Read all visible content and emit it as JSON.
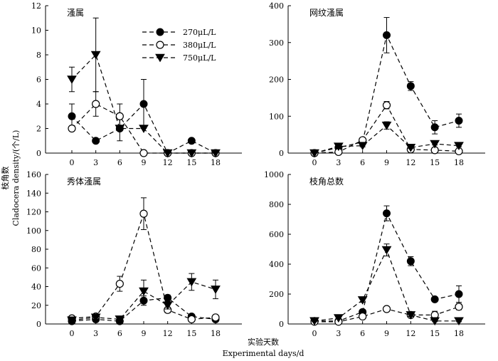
{
  "figure": {
    "ylabel_cn": "枝角数",
    "ylabel_en": "Cladocera density/(个/L)",
    "xlabel_cn": "实验天数",
    "xlabel_en": "Experimental days/d",
    "legend": [
      "270μL/L",
      "380μL/L",
      "750μL/L"
    ]
  },
  "chart_data": [
    {
      "type": "line",
      "title": "溞属",
      "x": [
        0,
        3,
        6,
        9,
        12,
        15,
        18
      ],
      "xticks": [
        "0",
        "3",
        "6",
        "9",
        "12",
        "15",
        "18"
      ],
      "ylim": [
        0,
        12
      ],
      "yticks": [
        0,
        2,
        4,
        6,
        8,
        10,
        12
      ],
      "show_legend": true,
      "series": [
        {
          "name": "270μL/L",
          "marker": "filled-circle",
          "values": [
            3,
            1,
            2,
            4,
            0,
            1,
            0
          ],
          "errors": [
            1,
            0,
            1,
            2,
            0,
            0,
            0
          ]
        },
        {
          "name": "380μL/L",
          "marker": "open-circle",
          "values": [
            2,
            4,
            3,
            0,
            0,
            0,
            0
          ],
          "errors": [
            0,
            1,
            1,
            0,
            0,
            0,
            0
          ]
        },
        {
          "name": "750μL/L",
          "marker": "triangle-down",
          "values": [
            6,
            8,
            2,
            2,
            0,
            0,
            0
          ],
          "errors": [
            1,
            3,
            0,
            0,
            0,
            0,
            0
          ]
        }
      ]
    },
    {
      "type": "line",
      "title": "网纹溞属",
      "x": [
        0,
        3,
        6,
        9,
        12,
        15,
        18
      ],
      "xticks": [
        "0",
        "3",
        "6",
        "9",
        "12",
        "15",
        "18"
      ],
      "ylim": [
        0,
        400
      ],
      "yticks": [
        0,
        100,
        200,
        300,
        400
      ],
      "show_legend": false,
      "series": [
        {
          "name": "270μL/L",
          "marker": "filled-circle",
          "values": [
            0,
            15,
            30,
            320,
            182,
            70,
            88
          ],
          "errors": [
            3,
            4,
            5,
            48,
            12,
            18,
            18
          ]
        },
        {
          "name": "380μL/L",
          "marker": "open-circle",
          "values": [
            0,
            3,
            35,
            130,
            10,
            8,
            5
          ],
          "errors": [
            2,
            2,
            5,
            10,
            3,
            3,
            2
          ]
        },
        {
          "name": "750μL/L",
          "marker": "triangle-down",
          "values": [
            0,
            18,
            20,
            75,
            15,
            25,
            20
          ],
          "errors": [
            2,
            3,
            3,
            10,
            3,
            3,
            3
          ]
        }
      ]
    },
    {
      "type": "line",
      "title": "秀体溞属",
      "x": [
        0,
        3,
        6,
        9,
        12,
        15,
        18
      ],
      "xticks": [
        "0",
        "3",
        "6",
        "9",
        "12",
        "15",
        "18"
      ],
      "ylim": [
        0,
        160
      ],
      "yticks": [
        0,
        20,
        40,
        60,
        80,
        100,
        120,
        140,
        160
      ],
      "show_legend": false,
      "series": [
        {
          "name": "270μL/L",
          "marker": "filled-circle",
          "values": [
            3,
            5,
            3,
            25,
            28,
            8,
            5
          ],
          "errors": [
            1,
            1,
            1,
            5,
            3,
            2,
            1
          ]
        },
        {
          "name": "380μL/L",
          "marker": "open-circle",
          "values": [
            6,
            8,
            43,
            118,
            15,
            5,
            7
          ],
          "errors": [
            1,
            2,
            8,
            17,
            3,
            2,
            2
          ]
        },
        {
          "name": "750μL/L",
          "marker": "triangle-down",
          "values": [
            4,
            7,
            5,
            35,
            20,
            45,
            37
          ],
          "errors": [
            1,
            2,
            1,
            12,
            4,
            9,
            10
          ]
        }
      ]
    },
    {
      "type": "line",
      "title": "枝角总数",
      "x": [
        0,
        3,
        6,
        9,
        12,
        15,
        18
      ],
      "xticks": [
        "0",
        "3",
        "6",
        "9",
        "12",
        "15",
        "18"
      ],
      "ylim": [
        0,
        1000
      ],
      "yticks": [
        0,
        200,
        400,
        600,
        800,
        1000
      ],
      "show_legend": false,
      "series": [
        {
          "name": "270μL/L",
          "marker": "filled-circle",
          "values": [
            20,
            20,
            80,
            740,
            420,
            165,
            200
          ],
          "errors": [
            5,
            5,
            15,
            50,
            30,
            15,
            55
          ]
        },
        {
          "name": "380μL/L",
          "marker": "open-circle",
          "values": [
            15,
            15,
            50,
            100,
            60,
            60,
            115
          ],
          "errors": [
            5,
            5,
            10,
            10,
            10,
            25,
            20
          ]
        },
        {
          "name": "750μL/L",
          "marker": "triangle-down",
          "values": [
            20,
            40,
            160,
            495,
            60,
            20,
            20
          ],
          "errors": [
            5,
            5,
            15,
            40,
            10,
            5,
            5
          ]
        }
      ]
    }
  ]
}
